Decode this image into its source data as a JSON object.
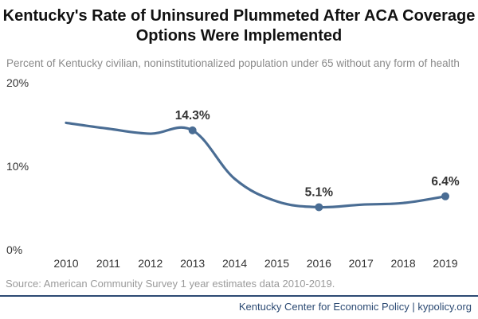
{
  "chart_data": {
    "type": "line",
    "title": "Kentucky's Rate of Uninsured Plummeted After ACA Coverage Options Were Implemented",
    "subtitle": "Percent of Kentucky civilian, noninstitutionalized population under 65 without any form of health",
    "xlabel": "",
    "ylabel": "",
    "x": [
      2010,
      2011,
      2012,
      2013,
      2014,
      2015,
      2016,
      2017,
      2018,
      2019
    ],
    "y_tick_labels": [
      "0%",
      "10%",
      "20%"
    ],
    "ylim": [
      0,
      20
    ],
    "series": [
      {
        "values": [
          15.2,
          14.5,
          13.9,
          14.3,
          8.5,
          5.8,
          5.1,
          5.4,
          5.6,
          6.4
        ]
      }
    ],
    "data_labels": [
      {
        "year": 2013,
        "value": 14.3,
        "text": "14.3%"
      },
      {
        "year": 2016,
        "value": 5.1,
        "text": "5.1%"
      },
      {
        "year": 2019,
        "value": 6.4,
        "text": "6.4%"
      }
    ],
    "line_color": "#4a6d94",
    "grid": false,
    "legend": "none"
  },
  "source": "Source: American Community Survey 1 year estimates data 2010-2019.",
  "footer": "Kentucky Center for Economic Policy | kypolicy.org"
}
